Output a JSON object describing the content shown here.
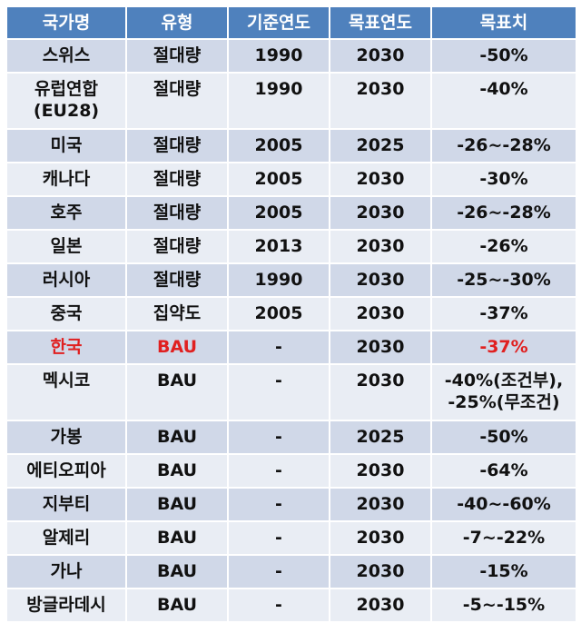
{
  "headers": [
    "국가명",
    "유형",
    "기준연도",
    "목표연도",
    "목표치"
  ],
  "rows": [
    {
      "country": "스위스",
      "type": "절대량",
      "base": "1990",
      "target_year": "2030",
      "goal": "-50%"
    },
    {
      "country": "유럽연합\n(EU28)",
      "type": "절대량",
      "base": "1990",
      "target_year": "2030",
      "goal": "-40%"
    },
    {
      "country": "미국",
      "type": "절대량",
      "base": "2005",
      "target_year": "2025",
      "goal": "-26~-28%"
    },
    {
      "country": "캐나다",
      "type": "절대량",
      "base": "2005",
      "target_year": "2030",
      "goal": "-30%"
    },
    {
      "country": "호주",
      "type": "절대량",
      "base": "2005",
      "target_year": "2030",
      "goal": "-26~-28%"
    },
    {
      "country": "일본",
      "type": "절대량",
      "base": "2013",
      "target_year": "2030",
      "goal": "-26%"
    },
    {
      "country": "러시아",
      "type": "절대량",
      "base": "1990",
      "target_year": "2030",
      "goal": "-25~-30%"
    },
    {
      "country": "중국",
      "type": "집약도",
      "base": "2005",
      "target_year": "2030",
      "goal": "-37%"
    },
    {
      "country": "한국",
      "type": "BAU",
      "base": "-",
      "target_year": "2030",
      "goal": "-37%"
    },
    {
      "country": "멕시코",
      "type": "BAU",
      "base": "-",
      "target_year": "2030",
      "goal": "-40%(조건부),\n-25%(무조건)"
    },
    {
      "country": "가봉",
      "type": "BAU",
      "base": "-",
      "target_year": "2025",
      "goal": "-50%"
    },
    {
      "country": "에티오피아",
      "type": "BAU",
      "base": "-",
      "target_year": "2030",
      "goal": "-64%"
    },
    {
      "country": "지부티",
      "type": "BAU",
      "base": "-",
      "target_year": "2030",
      "goal": "-40~-60%"
    },
    {
      "country": "알제리",
      "type": "BAU",
      "base": "-",
      "target_year": "2030",
      "goal": "-7~-22%"
    },
    {
      "country": "가나",
      "type": "BAU",
      "base": "-",
      "target_year": "2030",
      "goal": "-15%"
    },
    {
      "country": "방글라데시",
      "type": "BAU",
      "base": "-",
      "target_year": "2030",
      "goal": "-5~-15%"
    }
  ],
  "highlight_color": "#e02020",
  "header_color": "#4f81bd"
}
